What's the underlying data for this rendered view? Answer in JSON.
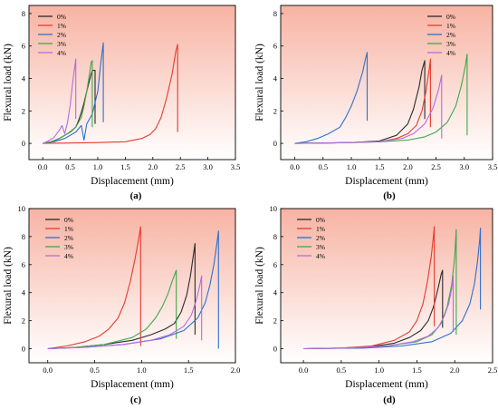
{
  "figure": {
    "panel_xlabel": "Displacement (mm)",
    "panel_ylabel": "Flexural load (kN)",
    "series_colors": [
      "#2b2b2b",
      "#e8392f",
      "#2f6fcc",
      "#3fa84a",
      "#b86ae0"
    ],
    "background_gradient": [
      "#f7b3a3",
      "#ffffff"
    ]
  },
  "chart_data": [
    {
      "panel": "(a)",
      "type": "line",
      "xlabel": "Displacement (mm)",
      "ylabel": "Flexural load (kN)",
      "xlim": [
        -0.25,
        3.5
      ],
      "ylim": [
        -1,
        8.5
      ],
      "xticks": [
        "0.0",
        "0.5",
        "1.0",
        "1.5",
        "2.0",
        "2.5",
        "3.0",
        "3.5"
      ],
      "yticks": [
        "0",
        "2",
        "4",
        "6",
        "8"
      ],
      "xtick_values": [
        0,
        0.5,
        1,
        1.5,
        2,
        2.5,
        3,
        3.5
      ],
      "ytick_values": [
        0,
        2,
        4,
        6,
        8
      ],
      "legend": "top-left",
      "series": [
        {
          "name": "0%",
          "x": [
            0,
            0.1,
            0.2,
            0.3,
            0.4,
            0.5,
            0.6,
            0.65,
            0.7,
            0.75,
            0.8,
            0.85,
            0.9,
            0.95,
            0.95
          ],
          "y": [
            0,
            0.05,
            0.15,
            0.3,
            0.5,
            0.7,
            1.0,
            1.4,
            1.9,
            2.5,
            3.2,
            3.9,
            4.5,
            4.5,
            1.2
          ]
        },
        {
          "name": "1%",
          "x": [
            0,
            0.5,
            1.0,
            1.5,
            1.8,
            1.95,
            2.05,
            2.15,
            2.25,
            2.35,
            2.42,
            2.45,
            2.45
          ],
          "y": [
            0,
            0.02,
            0.05,
            0.1,
            0.3,
            0.55,
            0.9,
            1.6,
            2.8,
            4.3,
            5.7,
            6.1,
            0.7
          ]
        },
        {
          "name": "2%",
          "x": [
            0,
            0.2,
            0.4,
            0.6,
            0.7,
            0.75,
            0.8,
            0.9,
            1.0,
            1.05,
            1.1,
            1.1
          ],
          "y": [
            0,
            0.1,
            0.3,
            0.7,
            1.1,
            0.2,
            1.2,
            1.8,
            3.2,
            4.8,
            6.2,
            1.3
          ]
        },
        {
          "name": "3%",
          "x": [
            0,
            0.15,
            0.3,
            0.45,
            0.6,
            0.7,
            0.75,
            0.8,
            0.85,
            0.88,
            0.9,
            0.9
          ],
          "y": [
            0,
            0.1,
            0.3,
            0.6,
            1.0,
            1.6,
            2.3,
            3.2,
            4.3,
            5.0,
            5.1,
            1.0
          ]
        },
        {
          "name": "4%",
          "x": [
            0,
            0.1,
            0.2,
            0.3,
            0.35,
            0.4,
            0.45,
            0.5,
            0.55,
            0.6,
            0.6
          ],
          "y": [
            0,
            0.15,
            0.35,
            0.8,
            1.1,
            0.6,
            1.3,
            2.4,
            3.9,
            5.2,
            1.5
          ]
        }
      ]
    },
    {
      "panel": "(b)",
      "type": "line",
      "xlabel": "Displacement (mm)",
      "ylabel": "Flexural load (kN)",
      "xlim": [
        -0.25,
        3.5
      ],
      "ylim": [
        -1,
        8.5
      ],
      "xticks": [
        "0.0",
        "0.5",
        "1.0",
        "1.5",
        "2.0",
        "2.5",
        "3.0",
        "3.5"
      ],
      "yticks": [
        "0",
        "2",
        "4",
        "6",
        "8"
      ],
      "xtick_values": [
        0,
        0.5,
        1,
        1.5,
        2,
        2.5,
        3,
        3.5
      ],
      "ytick_values": [
        0,
        2,
        4,
        6,
        8
      ],
      "legend": "top-right",
      "series": [
        {
          "name": "0%",
          "x": [
            0,
            0.5,
            1.0,
            1.5,
            1.8,
            2.0,
            2.1,
            2.2,
            2.25,
            2.3,
            2.3
          ],
          "y": [
            0,
            0.02,
            0.05,
            0.15,
            0.5,
            1.2,
            2.1,
            3.5,
            4.5,
            5.1,
            1.5
          ]
        },
        {
          "name": "1%",
          "x": [
            0,
            0.5,
            1.0,
            1.5,
            1.8,
            2.0,
            2.15,
            2.25,
            2.32,
            2.38,
            2.4,
            2.4
          ],
          "y": [
            0,
            0.02,
            0.05,
            0.1,
            0.3,
            0.6,
            1.1,
            2.0,
            3.2,
            4.6,
            5.2,
            1.0
          ]
        },
        {
          "name": "2%",
          "x": [
            0,
            0.2,
            0.4,
            0.6,
            0.8,
            0.9,
            1.0,
            1.1,
            1.2,
            1.25,
            1.28,
            1.28
          ],
          "y": [
            0,
            0.1,
            0.3,
            0.6,
            1.0,
            1.6,
            2.3,
            3.2,
            4.4,
            5.2,
            5.6,
            1.4
          ]
        },
        {
          "name": "3%",
          "x": [
            0,
            0.5,
            1.0,
            1.5,
            2.0,
            2.3,
            2.5,
            2.7,
            2.85,
            2.95,
            3.02,
            3.05,
            3.05
          ],
          "y": [
            0,
            0.02,
            0.05,
            0.1,
            0.2,
            0.4,
            0.7,
            1.3,
            2.3,
            3.6,
            4.8,
            5.5,
            0.5
          ]
        },
        {
          "name": "4%",
          "x": [
            0,
            0.5,
            1.0,
            1.5,
            1.9,
            2.1,
            2.3,
            2.45,
            2.55,
            2.6,
            2.6
          ],
          "y": [
            0,
            0.02,
            0.05,
            0.12,
            0.3,
            0.6,
            1.2,
            2.2,
            3.4,
            4.2,
            0.3
          ]
        }
      ]
    },
    {
      "panel": "(c)",
      "type": "line",
      "xlabel": "Displacement (mm)",
      "ylabel": "Flexural load (kN)",
      "xlim": [
        -0.2,
        2.0
      ],
      "ylim": [
        -1,
        10
      ],
      "xticks": [
        "0.0",
        "0.5",
        "1.0",
        "1.5",
        "2.0"
      ],
      "yticks": [
        "0",
        "2",
        "4",
        "6",
        "8",
        "10"
      ],
      "xtick_values": [
        0,
        0.5,
        1,
        1.5,
        2
      ],
      "ytick_values": [
        0,
        2,
        4,
        6,
        8,
        10
      ],
      "legend": "top-left",
      "series": [
        {
          "name": "0%",
          "x": [
            0,
            0.3,
            0.6,
            0.9,
            1.1,
            1.25,
            1.35,
            1.42,
            1.48,
            1.52,
            1.55,
            1.57,
            1.57
          ],
          "y": [
            0,
            0.1,
            0.3,
            0.6,
            1.0,
            1.4,
            1.8,
            2.6,
            3.8,
            5.2,
            6.6,
            7.5,
            1.0
          ]
        },
        {
          "name": "1%",
          "x": [
            0,
            0.2,
            0.4,
            0.55,
            0.65,
            0.75,
            0.82,
            0.88,
            0.93,
            0.97,
            0.99,
            0.99
          ],
          "y": [
            0,
            0.2,
            0.5,
            0.9,
            1.4,
            2.2,
            3.3,
            4.8,
            6.4,
            7.9,
            8.7,
            0.2
          ]
        },
        {
          "name": "2%",
          "x": [
            0,
            0.4,
            0.8,
            1.2,
            1.45,
            1.6,
            1.68,
            1.73,
            1.77,
            1.8,
            1.82,
            1.82
          ],
          "y": [
            0,
            0.1,
            0.3,
            0.7,
            1.3,
            2.2,
            3.3,
            4.6,
            6.0,
            7.4,
            8.4,
            0.0
          ]
        },
        {
          "name": "3%",
          "x": [
            0,
            0.3,
            0.6,
            0.9,
            1.05,
            1.15,
            1.22,
            1.28,
            1.33,
            1.37,
            1.37
          ],
          "y": [
            0,
            0.1,
            0.3,
            0.8,
            1.4,
            2.2,
            3.0,
            3.9,
            4.9,
            5.6,
            0.7
          ]
        },
        {
          "name": "4%",
          "x": [
            0,
            0.4,
            0.8,
            1.1,
            1.3,
            1.45,
            1.53,
            1.58,
            1.62,
            1.64,
            1.64
          ],
          "y": [
            0,
            0.1,
            0.3,
            0.6,
            1.0,
            1.6,
            2.4,
            3.4,
            4.5,
            5.2,
            0.6
          ]
        }
      ]
    },
    {
      "panel": "(d)",
      "type": "line",
      "xlabel": "Displacement (mm)",
      "ylabel": "Flexural load (kN)",
      "xlim": [
        -0.3,
        2.5
      ],
      "ylim": [
        -1,
        10
      ],
      "xticks": [
        "0.0",
        "0.5",
        "1.0",
        "1.5",
        "2.0",
        "2.5"
      ],
      "yticks": [
        "0",
        "2",
        "4",
        "6",
        "8",
        "10"
      ],
      "xtick_values": [
        0,
        0.5,
        1,
        1.5,
        2,
        2.5
      ],
      "ytick_values": [
        0,
        2,
        4,
        6,
        8,
        10
      ],
      "legend": "top-left",
      "series": [
        {
          "name": "0%",
          "x": [
            0,
            0.5,
            0.9,
            1.2,
            1.4,
            1.55,
            1.65,
            1.72,
            1.78,
            1.82,
            1.84,
            1.84
          ],
          "y": [
            0,
            0.05,
            0.15,
            0.4,
            0.8,
            1.3,
            2.0,
            3.0,
            4.3,
            5.3,
            5.6,
            1.5
          ]
        },
        {
          "name": "1%",
          "x": [
            0,
            0.5,
            0.9,
            1.2,
            1.4,
            1.5,
            1.58,
            1.64,
            1.69,
            1.72,
            1.73,
            1.73
          ],
          "y": [
            0,
            0.05,
            0.2,
            0.6,
            1.2,
            2.0,
            3.2,
            4.8,
            6.6,
            8.1,
            8.7,
            1.6
          ]
        },
        {
          "name": "2%",
          "x": [
            0,
            0.8,
            1.3,
            1.7,
            1.95,
            2.1,
            2.2,
            2.26,
            2.3,
            2.33,
            2.34,
            2.34
          ],
          "y": [
            0,
            0.05,
            0.2,
            0.5,
            1.1,
            2.0,
            3.2,
            4.6,
            6.2,
            7.8,
            8.6,
            2.8
          ]
        },
        {
          "name": "3%",
          "x": [
            0,
            0.6,
            1.1,
            1.5,
            1.7,
            1.82,
            1.9,
            1.96,
            2.0,
            2.02,
            2.02
          ],
          "y": [
            0,
            0.05,
            0.2,
            0.5,
            1.0,
            1.8,
            3.0,
            4.6,
            6.6,
            8.5,
            1.0
          ]
        },
        {
          "name": "4%",
          "x": [
            0,
            0.6,
            1.1,
            1.45,
            1.65,
            1.78,
            1.86,
            1.92,
            1.96,
            1.98,
            1.98
          ],
          "y": [
            0,
            0.05,
            0.2,
            0.5,
            0.9,
            1.5,
            2.3,
            3.2,
            4.3,
            5.2,
            1.2
          ]
        }
      ]
    }
  ]
}
